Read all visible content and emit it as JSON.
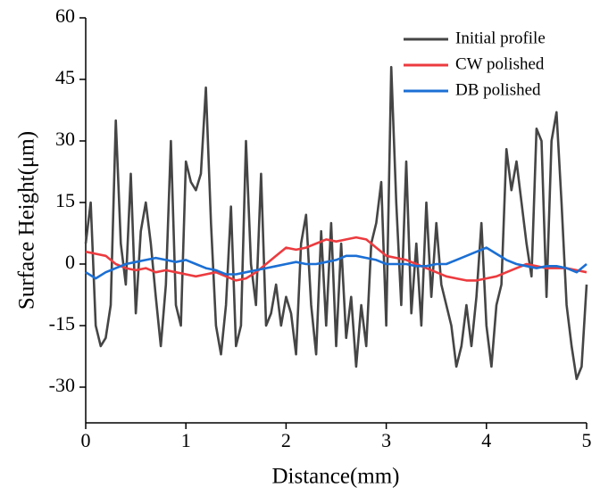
{
  "chart_data": {
    "type": "line",
    "x_label": "Distance(mm)",
    "y_label": "Surface Height(μm)",
    "xlim": [
      0,
      5
    ],
    "ylim": [
      -38.7,
      60
    ],
    "xticks": [
      0,
      1,
      2,
      3,
      4,
      5
    ],
    "yticks": [
      -30,
      -15,
      0,
      15,
      30,
      45,
      60
    ],
    "legend": "upper right",
    "series": [
      {
        "name": "Initial profile",
        "color": "#454545",
        "x": [
          0,
          0.05,
          0.1,
          0.15,
          0.2,
          0.25,
          0.3,
          0.35,
          0.4,
          0.45,
          0.5,
          0.55,
          0.6,
          0.65,
          0.7,
          0.75,
          0.8,
          0.85,
          0.9,
          0.95,
          1,
          1.05,
          1.1,
          1.15,
          1.2,
          1.25,
          1.3,
          1.35,
          1.4,
          1.45,
          1.5,
          1.55,
          1.6,
          1.65,
          1.7,
          1.75,
          1.8,
          1.85,
          1.9,
          1.95,
          2,
          2.05,
          2.1,
          2.15,
          2.2,
          2.25,
          2.3,
          2.35,
          2.4,
          2.45,
          2.5,
          2.55,
          2.6,
          2.65,
          2.7,
          2.75,
          2.8,
          2.85,
          2.9,
          2.95,
          3,
          3.05,
          3.1,
          3.15,
          3.2,
          3.25,
          3.3,
          3.35,
          3.4,
          3.45,
          3.5,
          3.55,
          3.6,
          3.65,
          3.7,
          3.75,
          3.8,
          3.85,
          3.9,
          3.95,
          4,
          4.05,
          4.1,
          4.15,
          4.2,
          4.25,
          4.3,
          4.35,
          4.4,
          4.45,
          4.5,
          4.55,
          4.6,
          4.65,
          4.7,
          4.75,
          4.8,
          4.85,
          4.9,
          4.95,
          5
        ],
        "values": [
          5,
          15,
          -15,
          -20,
          -18,
          -10,
          35,
          5,
          -5,
          22,
          -12,
          8,
          15,
          5,
          -8,
          -20,
          -5,
          30,
          -10,
          -15,
          25,
          20,
          18,
          22,
          43,
          10,
          -15,
          -22,
          -10,
          14,
          -20,
          -15,
          30,
          0,
          -10,
          22,
          -15,
          -12,
          -5,
          -15,
          -8,
          -12,
          -22,
          5,
          12,
          -10,
          -22,
          8,
          -15,
          10,
          -20,
          5,
          -18,
          -8,
          -25,
          -10,
          -20,
          5,
          10,
          20,
          -15,
          48,
          15,
          -10,
          25,
          -12,
          5,
          -15,
          15,
          -8,
          10,
          -5,
          -10,
          -15,
          -25,
          -20,
          -10,
          -20,
          -8,
          10,
          -15,
          -25,
          -10,
          -5,
          28,
          18,
          25,
          15,
          5,
          -3,
          33,
          30,
          -8,
          30,
          37,
          15,
          -10,
          -20,
          -28,
          -25,
          -5
        ]
      },
      {
        "name": "CW polished",
        "color": "#ec3b3f",
        "x": [
          0,
          0.1,
          0.2,
          0.3,
          0.4,
          0.5,
          0.6,
          0.7,
          0.8,
          0.9,
          1,
          1.1,
          1.2,
          1.3,
          1.4,
          1.5,
          1.6,
          1.7,
          1.8,
          1.9,
          2,
          2.1,
          2.2,
          2.3,
          2.4,
          2.5,
          2.6,
          2.7,
          2.8,
          2.9,
          3,
          3.1,
          3.2,
          3.3,
          3.4,
          3.5,
          3.6,
          3.7,
          3.8,
          3.9,
          4,
          4.1,
          4.2,
          4.3,
          4.4,
          4.5,
          4.6,
          4.7,
          4.8,
          4.9,
          5
        ],
        "values": [
          3,
          2.5,
          2,
          0,
          -1,
          -1.5,
          -1,
          -2,
          -1.5,
          -2,
          -2.5,
          -3,
          -2.5,
          -2,
          -3,
          -4,
          -3.5,
          -2,
          0,
          2,
          4,
          3.5,
          4,
          5,
          6,
          5.5,
          6,
          6.5,
          6,
          4,
          2,
          1.5,
          1,
          0,
          -1,
          -2,
          -3,
          -3.5,
          -4,
          -4,
          -3.5,
          -3,
          -2,
          -1,
          0,
          -0.5,
          -1,
          -1,
          -1,
          -1.5,
          -2
        ]
      },
      {
        "name": "DB polished",
        "color": "#1b6fd4",
        "x": [
          0,
          0.1,
          0.2,
          0.3,
          0.4,
          0.5,
          0.6,
          0.7,
          0.8,
          0.9,
          1,
          1.1,
          1.2,
          1.3,
          1.4,
          1.5,
          1.6,
          1.7,
          1.8,
          1.9,
          2,
          2.1,
          2.2,
          2.3,
          2.4,
          2.5,
          2.6,
          2.7,
          2.8,
          2.9,
          3,
          3.1,
          3.2,
          3.3,
          3.4,
          3.5,
          3.6,
          3.7,
          3.8,
          3.9,
          4,
          4.1,
          4.2,
          4.3,
          4.4,
          4.5,
          4.6,
          4.7,
          4.8,
          4.9,
          5
        ],
        "values": [
          -2,
          -3.5,
          -2,
          -1,
          0,
          0.5,
          1,
          1.5,
          1,
          0.5,
          1,
          0,
          -1,
          -1.5,
          -2.5,
          -2.5,
          -2,
          -1.5,
          -1,
          -0.5,
          0,
          0.5,
          0,
          0,
          0.5,
          1,
          2,
          2,
          1.5,
          1,
          0,
          0,
          0,
          -0.5,
          -0.5,
          0,
          0,
          1,
          2,
          3,
          4,
          2.5,
          1,
          0,
          -0.5,
          -1,
          -0.5,
          -0.5,
          -1,
          -2,
          0
        ]
      }
    ]
  }
}
